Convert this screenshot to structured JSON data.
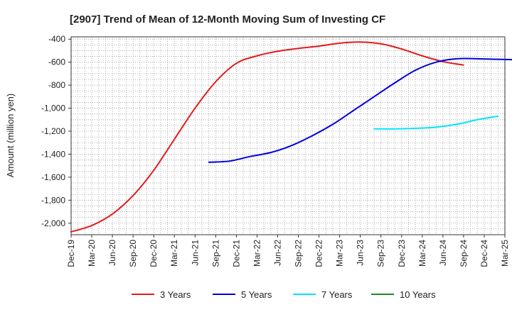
{
  "chart_data": {
    "type": "line",
    "title": "[2907]  Trend of Mean of 12-Month Moving Sum of Investing CF",
    "xlabel": "",
    "ylabel": "Amount (million yen)",
    "ylim": [
      -2100,
      -380
    ],
    "yticks": [
      -400,
      -600,
      -800,
      -1000,
      -1200,
      -1400,
      -1600,
      -1800,
      -2000
    ],
    "ytick_labels": [
      "-400",
      "-600",
      "-800",
      "-1,000",
      "-1,200",
      "-1,400",
      "-1,600",
      "-1,800",
      "-2,000"
    ],
    "x_categories": [
      "Dec-19",
      "Mar-20",
      "Jun-20",
      "Sep-20",
      "Dec-20",
      "Mar-21",
      "Jun-21",
      "Sep-21",
      "Dec-21",
      "Mar-22",
      "Jun-22",
      "Sep-22",
      "Dec-22",
      "Mar-23",
      "Jun-23",
      "Sep-23",
      "Dec-23",
      "Mar-24",
      "Jun-24",
      "Sep-24",
      "Dec-24",
      "Mar-25"
    ],
    "grid": true,
    "legend_position": "bottom",
    "series": [
      {
        "name": "3 Years",
        "color": "#e31a1c",
        "start_index": 0,
        "values": [
          -2075,
          -2020,
          -1920,
          -1760,
          -1540,
          -1270,
          -1000,
          -770,
          -610,
          -545,
          -505,
          -480,
          -460,
          -435,
          -425,
          -440,
          -485,
          -545,
          -595,
          -625
        ]
      },
      {
        "name": "5 Years",
        "color": "#0000dd",
        "start_index": 6.67,
        "values": [
          -1470,
          -1460,
          -1420,
          -1385,
          -1325,
          -1240,
          -1140,
          -1020,
          -900,
          -780,
          -670,
          -600,
          -570,
          -570,
          -575,
          -580
        ]
      },
      {
        "name": "7 Years",
        "color": "#00e5ff",
        "start_index": 14.67,
        "values": [
          -1180,
          -1180,
          -1175,
          -1165,
          -1140,
          -1100,
          -1070
        ]
      },
      {
        "name": "10 Years",
        "color": "#228b22",
        "start_index": 0,
        "values": []
      }
    ]
  }
}
